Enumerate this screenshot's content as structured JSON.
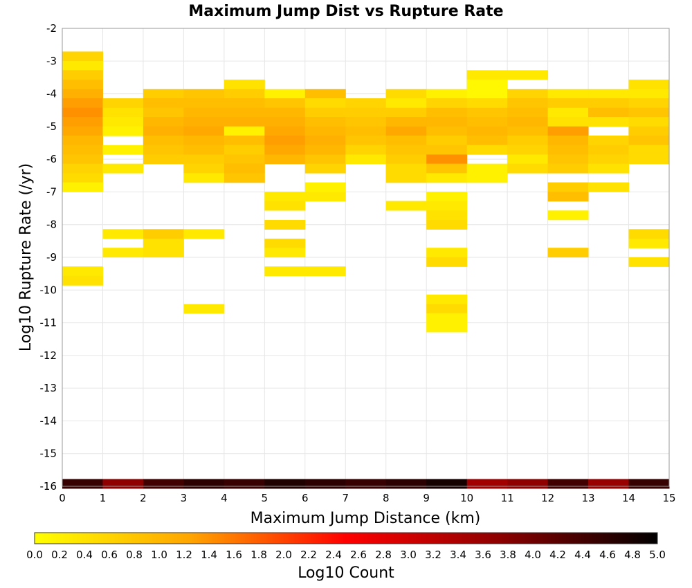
{
  "chart_data": {
    "type": "heatmap",
    "title": "Maximum Jump Dist vs Rupture Rate",
    "xlabel": "Maximum Jump Distance (km)",
    "ylabel": "Log10 Rupture Rate (/yr)",
    "xlim": [
      0,
      15
    ],
    "ylim": [
      -16,
      -2
    ],
    "x_ticks": [
      0,
      1,
      2,
      3,
      4,
      5,
      6,
      7,
      8,
      9,
      10,
      11,
      12,
      13,
      14,
      15
    ],
    "y_ticks": [
      -2,
      -3,
      -4,
      -5,
      -6,
      -7,
      -8,
      -9,
      -10,
      -11,
      -12,
      -13,
      -14,
      -15,
      -16
    ],
    "x_bin_width": 1,
    "y_bin_height": 0.285,
    "grid": true,
    "colorbar": {
      "title": "Log10 Count",
      "range": [
        0,
        5
      ],
      "ticks": [
        "0.0",
        "0.2",
        "0.4",
        "0.6",
        "0.8",
        "1.0",
        "1.2",
        "1.4",
        "1.6",
        "1.8",
        "2.0",
        "2.2",
        "2.4",
        "2.6",
        "2.8",
        "3.0",
        "3.2",
        "3.4",
        "3.6",
        "3.8",
        "4.0",
        "4.2",
        "4.4",
        "4.6",
        "4.8",
        "5.0"
      ],
      "colors": [
        "#ffff00",
        "#ffa500",
        "#ff0000",
        "#8b0000",
        "#000000"
      ]
    },
    "columns": [
      {
        "x": 0,
        "cells": [
          [
            -2.85,
            0.6
          ],
          [
            -3.14,
            0.3
          ],
          [
            -3.42,
            0.7
          ],
          [
            -3.71,
            0.9
          ],
          [
            -4.0,
            1.1
          ],
          [
            -4.28,
            1.3
          ],
          [
            -4.57,
            1.4
          ],
          [
            -4.85,
            1.3
          ],
          [
            -5.14,
            1.2
          ],
          [
            -5.42,
            1.0
          ],
          [
            -5.71,
            0.9
          ],
          [
            -6.0,
            0.8
          ],
          [
            -6.28,
            0.6
          ],
          [
            -6.57,
            0.5
          ],
          [
            -6.85,
            0.2
          ],
          [
            -9.42,
            0.3
          ],
          [
            -9.71,
            0.4
          ],
          [
            -15.92,
            4.5
          ]
        ]
      },
      {
        "x": 1,
        "cells": [
          [
            -4.28,
            0.6
          ],
          [
            -4.57,
            0.4
          ],
          [
            -4.85,
            0.3
          ],
          [
            -5.14,
            0.2
          ],
          [
            -5.71,
            0.2
          ],
          [
            -6.28,
            0.3
          ],
          [
            -8.28,
            0.3
          ],
          [
            -8.85,
            0.3
          ],
          [
            -15.92,
            3.7
          ]
        ]
      },
      {
        "x": 2,
        "cells": [
          [
            -4.0,
            0.7
          ],
          [
            -4.28,
            0.9
          ],
          [
            -4.57,
            0.8
          ],
          [
            -4.85,
            1.0
          ],
          [
            -5.14,
            1.1
          ],
          [
            -5.42,
            0.9
          ],
          [
            -5.71,
            0.8
          ],
          [
            -6.0,
            0.7
          ],
          [
            -8.28,
            0.7
          ],
          [
            -8.57,
            0.4
          ],
          [
            -8.85,
            0.4
          ],
          [
            -15.92,
            4.4
          ]
        ]
      },
      {
        "x": 3,
        "cells": [
          [
            -4.0,
            0.8
          ],
          [
            -4.28,
            0.9
          ],
          [
            -4.57,
            1.0
          ],
          [
            -4.85,
            1.1
          ],
          [
            -5.14,
            1.2
          ],
          [
            -5.42,
            1.0
          ],
          [
            -5.71,
            0.9
          ],
          [
            -6.0,
            0.7
          ],
          [
            -6.28,
            0.6
          ],
          [
            -6.57,
            0.3
          ],
          [
            -8.28,
            0.3
          ],
          [
            -10.57,
            0.3
          ],
          [
            -15.92,
            4.6
          ]
        ]
      },
      {
        "x": 4,
        "cells": [
          [
            -3.71,
            0.4
          ],
          [
            -4.0,
            0.7
          ],
          [
            -4.28,
            0.9
          ],
          [
            -4.57,
            1.0
          ],
          [
            -4.85,
            1.1
          ],
          [
            -5.14,
            0.2
          ],
          [
            -5.42,
            0.9
          ],
          [
            -5.71,
            0.7
          ],
          [
            -6.0,
            0.8
          ],
          [
            -6.28,
            0.9
          ],
          [
            -6.57,
            0.8
          ],
          [
            -15.92,
            4.5
          ]
        ]
      },
      {
        "x": 5,
        "cells": [
          [
            -4.0,
            0.2
          ],
          [
            -4.28,
            0.8
          ],
          [
            -4.57,
            1.0
          ],
          [
            -4.85,
            1.1
          ],
          [
            -5.14,
            1.2
          ],
          [
            -5.42,
            1.3
          ],
          [
            -5.71,
            1.2
          ],
          [
            -6.0,
            1.0
          ],
          [
            -7.14,
            0.3
          ],
          [
            -7.42,
            0.4
          ],
          [
            -8.0,
            0.5
          ],
          [
            -8.57,
            0.5
          ],
          [
            -8.85,
            0.3
          ],
          [
            -9.42,
            0.3
          ],
          [
            -15.92,
            4.7
          ]
        ]
      },
      {
        "x": 6,
        "cells": [
          [
            -4.0,
            0.9
          ],
          [
            -4.28,
            0.5
          ],
          [
            -4.57,
            0.7
          ],
          [
            -4.85,
            0.9
          ],
          [
            -5.14,
            1.0
          ],
          [
            -5.42,
            1.1
          ],
          [
            -5.71,
            1.0
          ],
          [
            -6.0,
            0.8
          ],
          [
            -6.28,
            0.6
          ],
          [
            -6.85,
            0.2
          ],
          [
            -7.14,
            0.3
          ],
          [
            -9.42,
            0.3
          ],
          [
            -15.92,
            4.6
          ]
        ]
      },
      {
        "x": 7,
        "cells": [
          [
            -4.28,
            0.6
          ],
          [
            -4.57,
            0.7
          ],
          [
            -4.85,
            0.8
          ],
          [
            -5.14,
            0.9
          ],
          [
            -5.42,
            0.8
          ],
          [
            -5.71,
            0.6
          ],
          [
            -6.0,
            0.3
          ],
          [
            -15.92,
            4.5
          ]
        ]
      },
      {
        "x": 8,
        "cells": [
          [
            -4.0,
            0.5
          ],
          [
            -4.28,
            0.3
          ],
          [
            -4.57,
            0.7
          ],
          [
            -4.85,
            1.0
          ],
          [
            -5.14,
            1.2
          ],
          [
            -5.42,
            0.9
          ],
          [
            -5.71,
            0.8
          ],
          [
            -6.0,
            0.7
          ],
          [
            -6.28,
            0.5
          ],
          [
            -6.57,
            0.5
          ],
          [
            -7.42,
            0.3
          ],
          [
            -15.92,
            4.6
          ]
        ]
      },
      {
        "x": 9,
        "cells": [
          [
            -4.0,
            0.2
          ],
          [
            -4.28,
            0.6
          ],
          [
            -4.57,
            0.9
          ],
          [
            -4.85,
            1.0
          ],
          [
            -5.14,
            0.9
          ],
          [
            -5.42,
            0.7
          ],
          [
            -5.71,
            0.8
          ],
          [
            -6.0,
            1.4
          ],
          [
            -6.28,
            0.8
          ],
          [
            -6.57,
            0.3
          ],
          [
            -7.14,
            0.2
          ],
          [
            -7.42,
            0.3
          ],
          [
            -7.71,
            0.4
          ],
          [
            -8.0,
            0.5
          ],
          [
            -8.85,
            0.3
          ],
          [
            -9.14,
            0.5
          ],
          [
            -10.28,
            0.3
          ],
          [
            -10.57,
            0.5
          ],
          [
            -10.85,
            0.2
          ],
          [
            -11.14,
            0.2
          ],
          [
            -15.92,
            4.8
          ]
        ]
      },
      {
        "x": 10,
        "cells": [
          [
            -3.42,
            0.3
          ],
          [
            -3.71,
            0.1
          ],
          [
            -4.0,
            0.1
          ],
          [
            -4.28,
            0.5
          ],
          [
            -4.57,
            0.8
          ],
          [
            -4.85,
            0.9
          ],
          [
            -5.14,
            1.0
          ],
          [
            -5.42,
            0.9
          ],
          [
            -5.71,
            0.5
          ],
          [
            -6.28,
            0.2
          ],
          [
            -6.57,
            0.2
          ],
          [
            -15.92,
            3.5
          ]
        ]
      },
      {
        "x": 11,
        "cells": [
          [
            -3.42,
            0.3
          ],
          [
            -4.0,
            0.6
          ],
          [
            -4.28,
            0.8
          ],
          [
            -4.57,
            0.9
          ],
          [
            -4.85,
            1.0
          ],
          [
            -5.14,
            0.9
          ],
          [
            -5.42,
            0.7
          ],
          [
            -5.71,
            0.6
          ],
          [
            -6.0,
            0.3
          ],
          [
            -6.28,
            0.5
          ],
          [
            -15.92,
            3.7
          ]
        ]
      },
      {
        "x": 12,
        "cells": [
          [
            -4.0,
            0.3
          ],
          [
            -4.28,
            0.7
          ],
          [
            -4.57,
            0.3
          ],
          [
            -4.85,
            0.4
          ],
          [
            -5.14,
            1.3
          ],
          [
            -5.42,
            1.0
          ],
          [
            -5.71,
            0.9
          ],
          [
            -6.0,
            0.8
          ],
          [
            -6.28,
            0.7
          ],
          [
            -6.85,
            0.7
          ],
          [
            -7.14,
            0.9
          ],
          [
            -7.71,
            0.2
          ],
          [
            -8.85,
            0.7
          ],
          [
            -15.92,
            4.4
          ]
        ]
      },
      {
        "x": 13,
        "cells": [
          [
            -4.0,
            0.3
          ],
          [
            -4.28,
            0.7
          ],
          [
            -4.57,
            0.9
          ],
          [
            -4.85,
            0.4
          ],
          [
            -5.42,
            0.6
          ],
          [
            -5.71,
            0.7
          ],
          [
            -6.0,
            0.6
          ],
          [
            -6.28,
            0.4
          ],
          [
            -6.85,
            0.4
          ],
          [
            -15.92,
            3.6
          ]
        ]
      },
      {
        "x": 14,
        "cells": [
          [
            -3.71,
            0.4
          ],
          [
            -4.0,
            0.3
          ],
          [
            -4.28,
            0.6
          ],
          [
            -4.57,
            0.8
          ],
          [
            -4.85,
            0.5
          ],
          [
            -5.14,
            0.7
          ],
          [
            -5.42,
            0.8
          ],
          [
            -5.71,
            0.5
          ],
          [
            -6.0,
            0.5
          ],
          [
            -8.28,
            0.5
          ],
          [
            -8.57,
            0.3
          ],
          [
            -9.14,
            0.4
          ],
          [
            -15.92,
            4.5
          ]
        ]
      }
    ]
  }
}
